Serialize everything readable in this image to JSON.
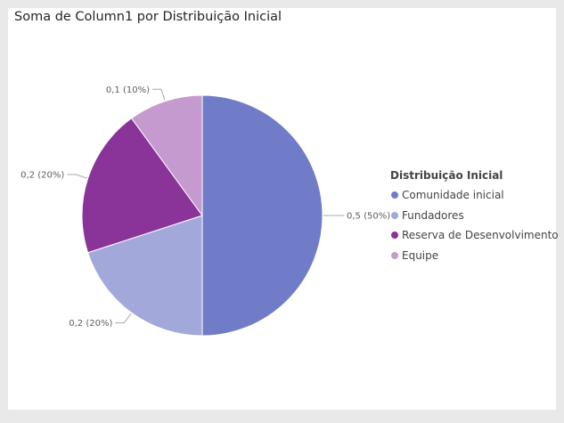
{
  "visual": {
    "title": "Soma de Column1 por Distribuição Inicial"
  },
  "chart_data": {
    "type": "pie",
    "title": "Soma de Column1 por Distribuição Inicial",
    "legend_title": "Distribuição Inicial",
    "legend_position": "right",
    "categories": [
      "Comunidade inicial",
      "Fundadores",
      "Reserva de Desenvolvimento",
      "Equipe"
    ],
    "values": [
      0.5,
      0.2,
      0.2,
      0.1
    ],
    "data_labels": [
      "0,5 (50%)",
      "0,2 (20%)",
      "0,2 (20%)",
      "0,1 (10%)"
    ],
    "colors": [
      "#717cc8",
      "#a2a8da",
      "#8a3399",
      "#c59ace"
    ]
  }
}
